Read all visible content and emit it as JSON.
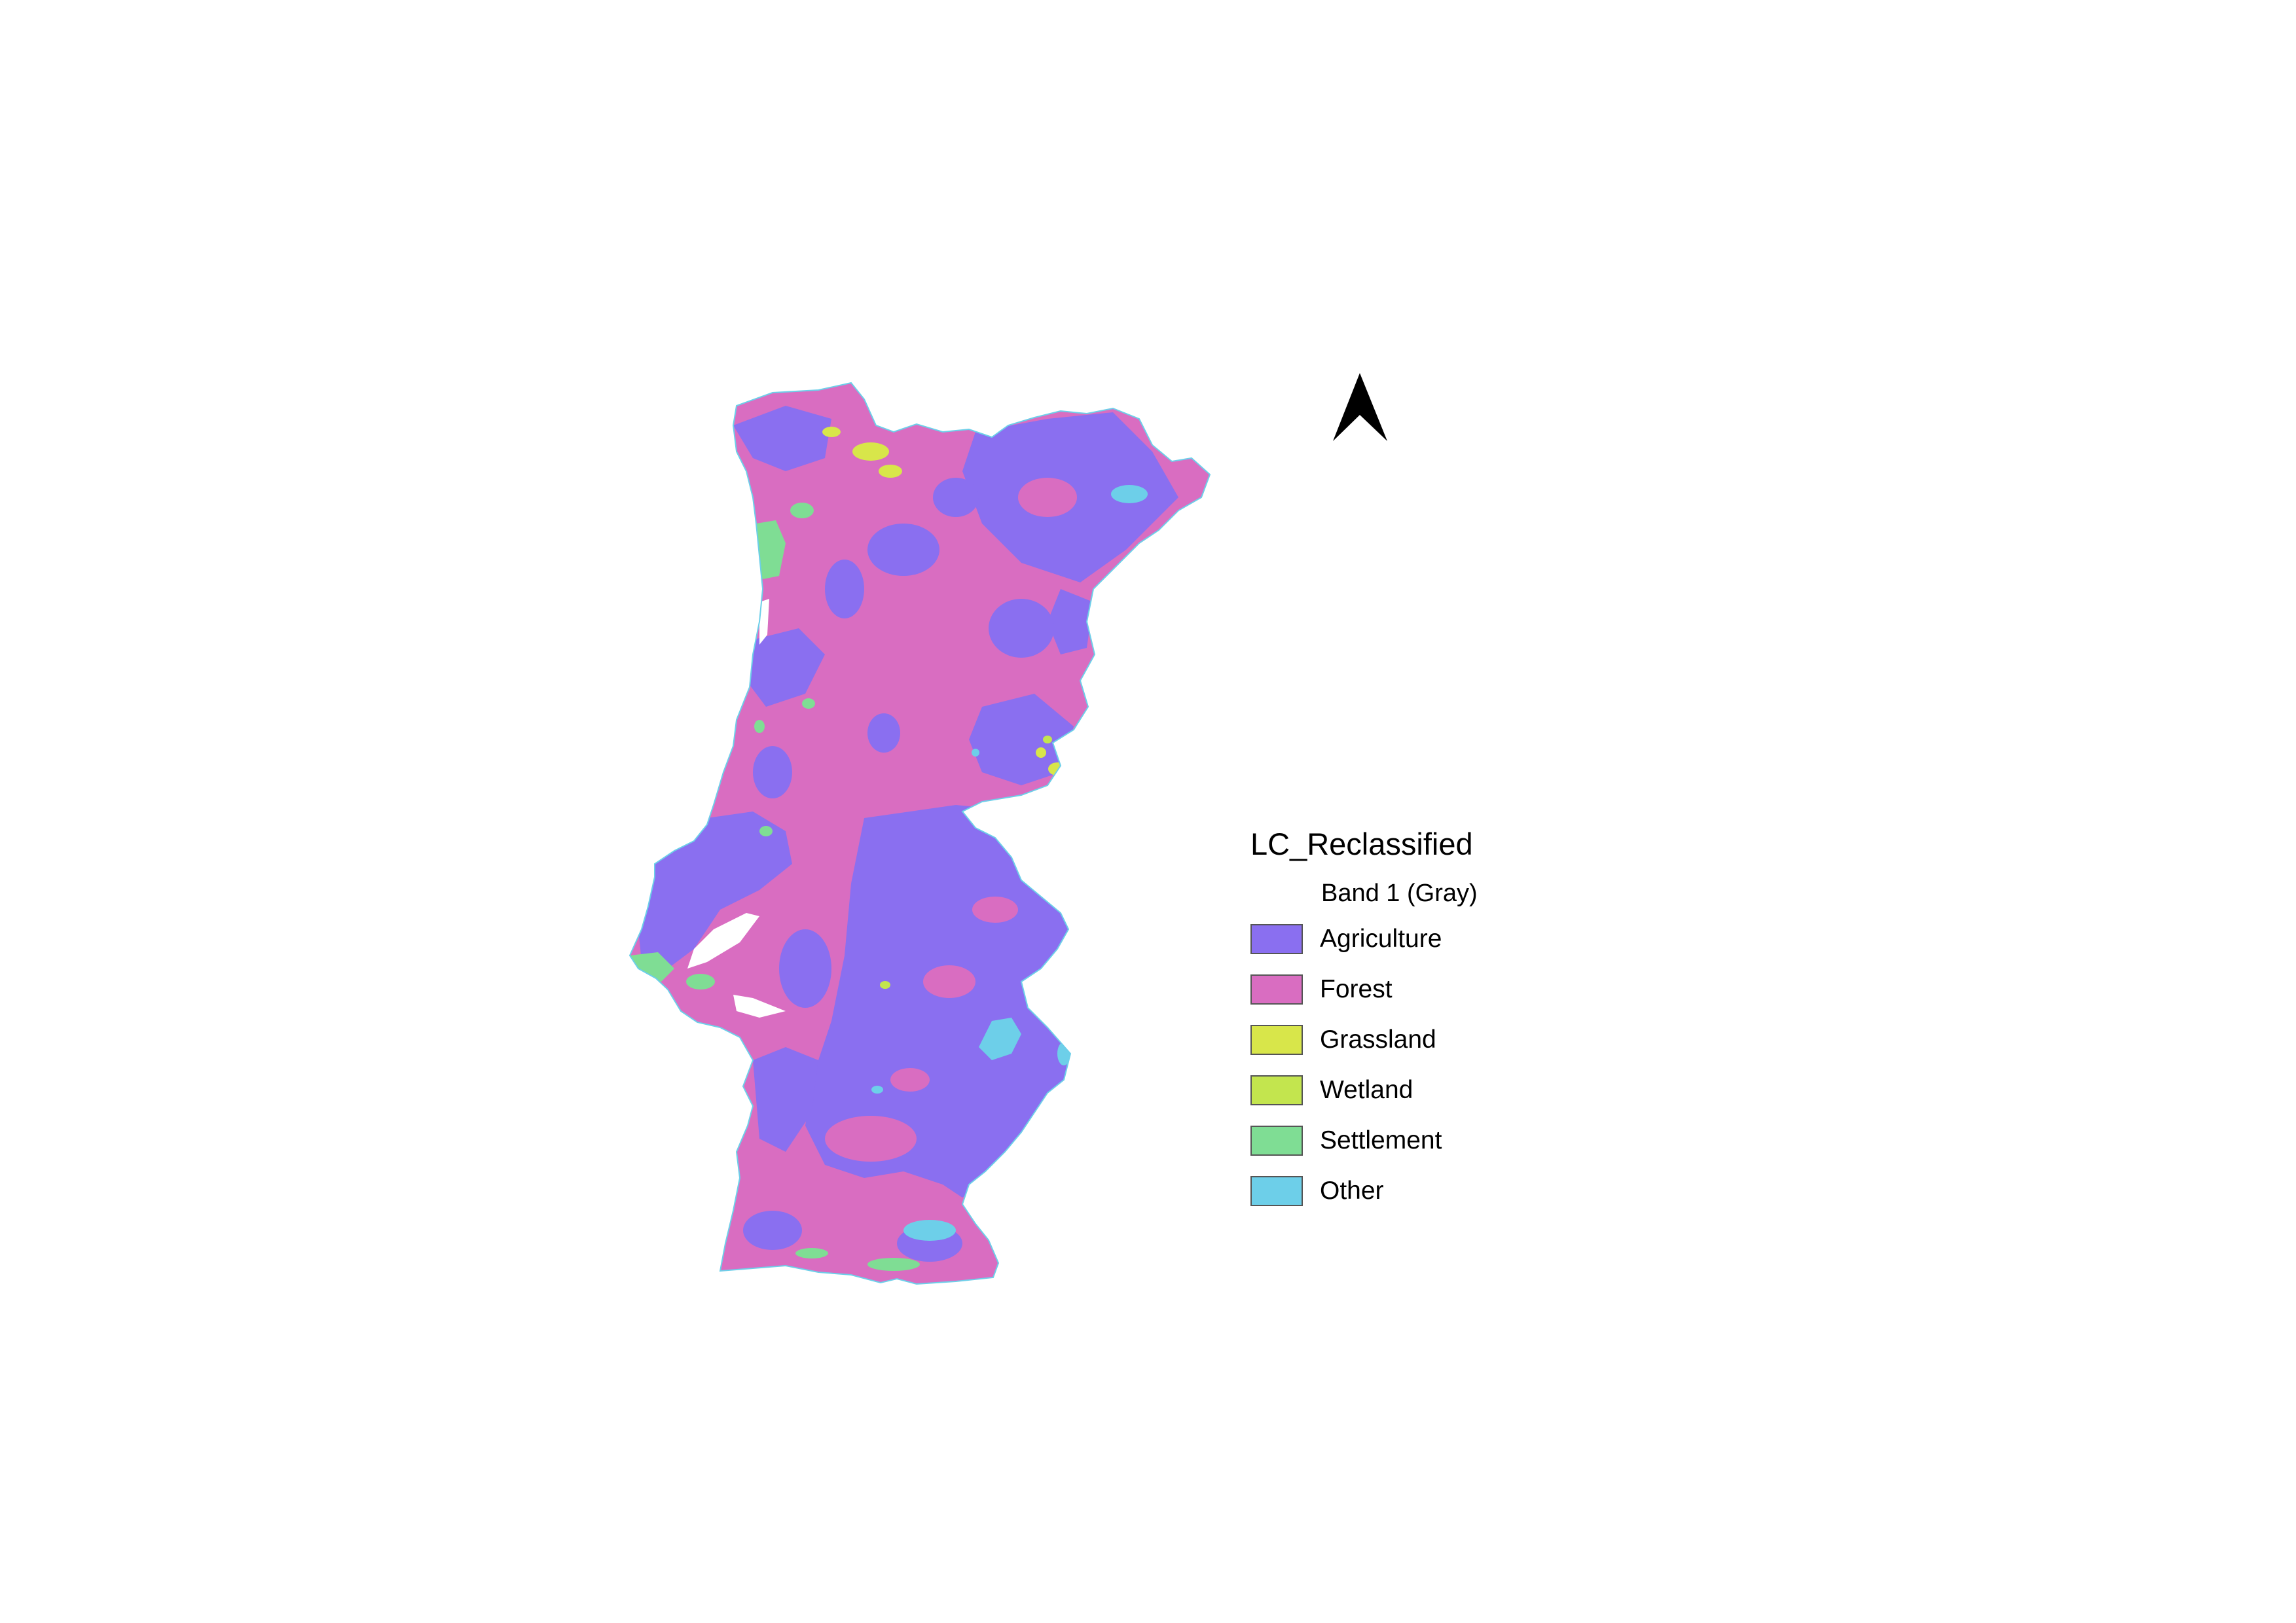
{
  "legend": {
    "title": "LC_Reclassified",
    "band": "Band 1 (Gray)",
    "items": [
      {
        "label": "Agriculture",
        "color": "#8a6ff0"
      },
      {
        "label": "Forest",
        "color": "#d96dc1"
      },
      {
        "label": "Grassland",
        "color": "#d8e64a"
      },
      {
        "label": "Wetland",
        "color": "#c3e54e"
      },
      {
        "label": "Settlement",
        "color": "#7fdd94"
      },
      {
        "label": "Other",
        "color": "#6dcfe9"
      }
    ]
  },
  "north_arrow": {
    "icon": "north-arrow-icon",
    "color": "#000000"
  }
}
